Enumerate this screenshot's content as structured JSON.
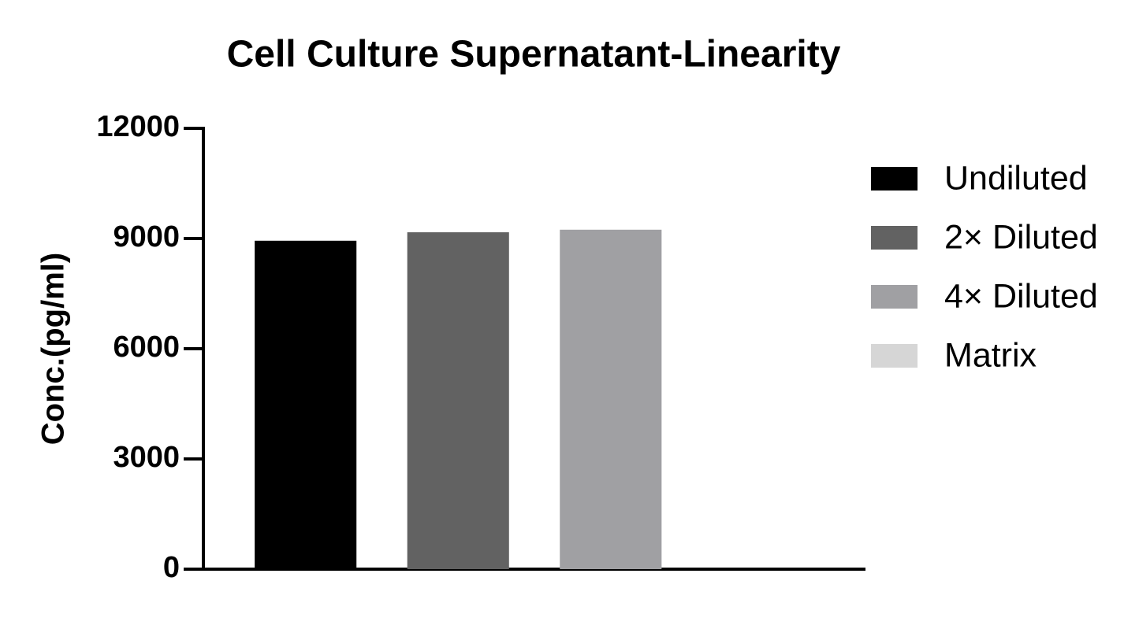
{
  "chart_data": {
    "type": "bar",
    "title": "Cell Culture Supernatant-Linearity",
    "y_label": "Conc.(pg/ml)",
    "categories": [
      null
    ],
    "series": [
      {
        "name": "Undiluted",
        "color": "#000000",
        "values": [
          8940
        ]
      },
      {
        "name": "2× Diluted",
        "color": "#626262",
        "values": [
          9170
        ]
      },
      {
        "name": "4× Diluted",
        "color": "#a0a0a3",
        "values": [
          9240
        ]
      },
      {
        "name": "Matrix",
        "color": "#d6d6d6",
        "values": [
          0
        ]
      }
    ],
    "ylim": [
      0,
      12000
    ],
    "yticks": [
      0,
      3000,
      6000,
      9000,
      12000
    ],
    "grid": false,
    "legend": "right"
  }
}
